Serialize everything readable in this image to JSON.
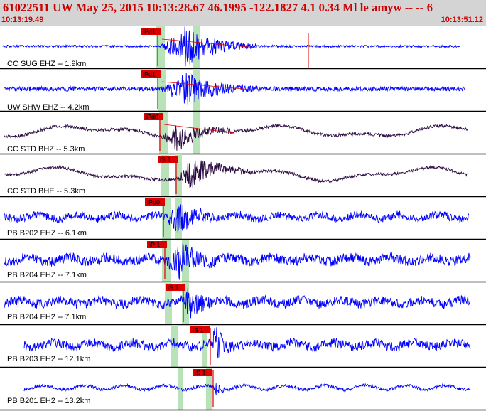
{
  "header": {
    "title": "61022511 UW May 25, 2015 10:13:28.67   46.1995 -122.1827  4.1 0.34 Ml le amyw -- --    6",
    "start_time": "10:13:19.49",
    "end_time": "10:13:51.12"
  },
  "colors": {
    "header_bg": "#d4d4d4",
    "header_text": "#cc0000",
    "trace_vertical": "#0000ff",
    "trace_broadband": "#2a0a40",
    "pick_fill": "#dd0000",
    "pick_window": "#b8e2b8"
  },
  "chart_data": {
    "type": "line",
    "title": "61022511 UW May 25, 2015 10:13:28.67   46.1995 -122.1827  4.1 0.34 Ml le amyw -- --    6",
    "x_range": [
      "10:13:19.49",
      "10:13:51.12"
    ],
    "series": [
      {
        "name": "CC SUG EHZ -- 1.9km",
        "pick": "iPd1",
        "style": "vertical"
      },
      {
        "name": "UW SHW EHZ -- 4.2km",
        "pick": "iPd1",
        "style": "vertical"
      },
      {
        "name": "CC STD BHZ -- 5.3km",
        "pick": "iPd0",
        "style": "broadband"
      },
      {
        "name": "CC STD BHE -- 5.3km",
        "pick": "iS 1",
        "style": "broadband"
      },
      {
        "name": "PB B202 EHZ -- 6.1km",
        "pick": "iPd0",
        "style": "vertical"
      },
      {
        "name": "PB B204 EHZ -- 7.1km",
        "pick": "iP 1",
        "style": "vertical"
      },
      {
        "name": "PB B204 EH2 -- 7.1km",
        "pick": "iS 1",
        "style": "vertical"
      },
      {
        "name": "PB B203 EH2 -- 12.1km",
        "pick": "iS 1",
        "style": "vertical"
      },
      {
        "name": "PB B201 EH2 -- 13.2km",
        "pick": "iS 1",
        "style": "vertical"
      }
    ]
  }
}
